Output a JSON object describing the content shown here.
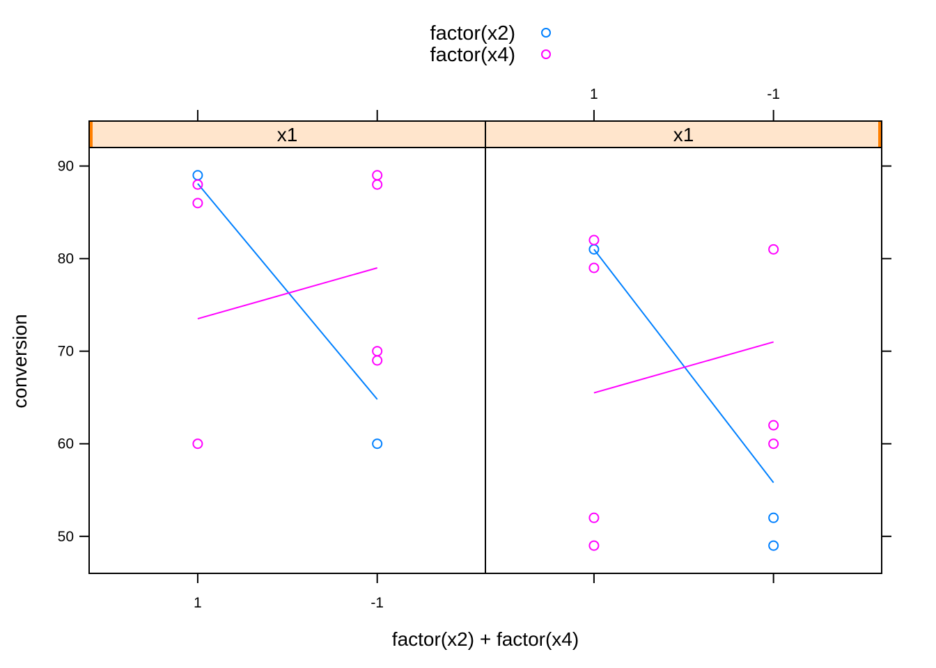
{
  "chart_data": {
    "type": "scatter",
    "title": "",
    "xlabel": "factor(x2) + factor(x4)",
    "ylabel": "conversion",
    "ylim": [
      46,
      92
    ],
    "y_ticks": [
      50,
      60,
      70,
      80,
      90
    ],
    "x_categories": [
      "1",
      "-1"
    ],
    "legend": {
      "placement": "top",
      "entries": [
        {
          "label": "factor(x2)",
          "color": "#0080ff"
        },
        {
          "label": "factor(x4)",
          "color": "#ff00ff"
        }
      ]
    },
    "panels": [
      {
        "strip_label": "x1",
        "strip_color": "#ffe5cc",
        "strip_indicator": "left",
        "series": [
          {
            "legend_ref": 0,
            "points": [
              {
                "x": "1",
                "y": 89
              },
              {
                "x": "-1",
                "y": 60
              }
            ],
            "line": [
              {
                "x": "1",
                "y": 88.1
              },
              {
                "x": "-1",
                "y": 64.8
              }
            ]
          },
          {
            "legend_ref": 1,
            "points": [
              {
                "x": "1",
                "y": 88
              },
              {
                "x": "1",
                "y": 86
              },
              {
                "x": "1",
                "y": 60
              },
              {
                "x": "-1",
                "y": 89
              },
              {
                "x": "-1",
                "y": 88
              },
              {
                "x": "-1",
                "y": 70
              },
              {
                "x": "-1",
                "y": 69
              }
            ],
            "line": [
              {
                "x": "1",
                "y": 73.5
              },
              {
                "x": "-1",
                "y": 79
              }
            ]
          }
        ]
      },
      {
        "strip_label": "x1",
        "strip_color": "#ffe5cc",
        "strip_indicator": "right",
        "series": [
          {
            "legend_ref": 0,
            "points": [
              {
                "x": "1",
                "y": 81
              },
              {
                "x": "-1",
                "y": 52
              },
              {
                "x": "-1",
                "y": 49
              }
            ],
            "line": [
              {
                "x": "1",
                "y": 81
              },
              {
                "x": "-1",
                "y": 55.8
              }
            ]
          },
          {
            "legend_ref": 1,
            "points": [
              {
                "x": "1",
                "y": 82
              },
              {
                "x": "1",
                "y": 79
              },
              {
                "x": "1",
                "y": 52
              },
              {
                "x": "1",
                "y": 49
              },
              {
                "x": "-1",
                "y": 81
              },
              {
                "x": "-1",
                "y": 62
              },
              {
                "x": "-1",
                "y": 60
              }
            ],
            "line": [
              {
                "x": "1",
                "y": 65.5
              },
              {
                "x": "-1",
                "y": 71
              }
            ]
          }
        ]
      }
    ]
  }
}
